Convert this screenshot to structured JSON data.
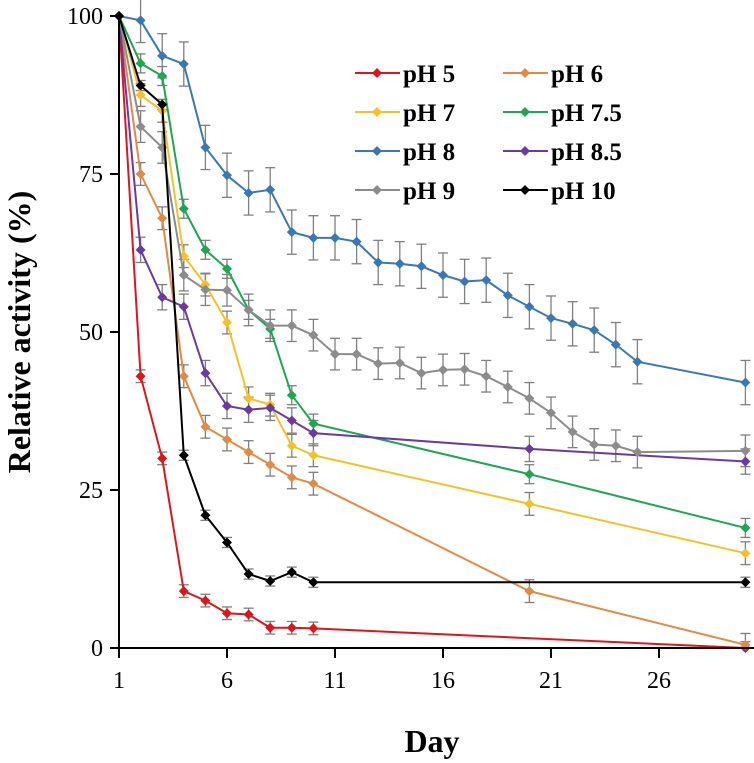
{
  "chart_data": {
    "type": "line",
    "title": "",
    "xlabel": "Day",
    "ylabel": "Relative activity (%)",
    "xlim": [
      1,
      30
    ],
    "ylim": [
      0,
      100
    ],
    "xticks": [
      1,
      6,
      11,
      16,
      21,
      26
    ],
    "yticks": [
      0,
      25,
      50,
      75,
      100
    ],
    "grid": false,
    "legend_position": "top-right",
    "series": [
      {
        "name": "pH 5",
        "color": "#e0151b",
        "err": 1.0,
        "x": [
          1,
          2,
          3,
          4,
          5,
          6,
          7,
          8,
          9,
          10,
          30
        ],
        "y": [
          100,
          43,
          30,
          9,
          7.5,
          5.5,
          5.3,
          3.2,
          3.2,
          3.1,
          0
        ]
      },
      {
        "name": "pH 6",
        "color": "#e08a45",
        "err": 1.8,
        "x": [
          1,
          2,
          3,
          4,
          5,
          6,
          7,
          8,
          9,
          10,
          20,
          30
        ],
        "y": [
          100,
          75,
          68,
          43,
          35,
          33,
          31,
          29,
          27,
          26,
          9,
          0.5
        ]
      },
      {
        "name": "pH 7",
        "color": "#f5c12a",
        "err": 1.8,
        "x": [
          1,
          2,
          3,
          4,
          5,
          6,
          7,
          8,
          9,
          10,
          20,
          30
        ],
        "y": [
          100,
          87.5,
          85,
          62,
          57.5,
          51.5,
          39.5,
          38.5,
          32,
          30.5,
          22.8,
          15
        ]
      },
      {
        "name": "pH 7.5",
        "color": "#1fa653",
        "err": 1.5,
        "x": [
          1,
          2,
          3,
          4,
          5,
          6,
          7,
          8,
          9,
          10,
          20,
          30
        ],
        "y": [
          100,
          92.5,
          90.5,
          69.5,
          63,
          60,
          53.5,
          50.5,
          40,
          35.5,
          27.5,
          19
        ]
      },
      {
        "name": "pH 8",
        "color": "#3a78b5",
        "err": 3.5,
        "x": [
          1,
          2,
          3,
          4,
          5,
          6,
          7,
          8,
          9,
          10,
          11,
          12,
          13,
          14,
          15,
          16,
          17,
          18,
          19,
          20,
          21,
          22,
          23,
          24,
          25,
          30
        ],
        "y": [
          100,
          99.3,
          93.7,
          92.4,
          79.2,
          74.8,
          72,
          72.5,
          65.8,
          64.9,
          64.9,
          64.3,
          61,
          60.8,
          60.4,
          59,
          58,
          58.2,
          55.8,
          54,
          52.2,
          51.3,
          50.3,
          48,
          45.3,
          42
        ]
      },
      {
        "name": "pH 8.5",
        "color": "#6a3a9e",
        "err": 2.0,
        "x": [
          1,
          2,
          3,
          4,
          5,
          6,
          7,
          8,
          9,
          10,
          20,
          30
        ],
        "y": [
          100,
          63,
          55.5,
          54,
          43.5,
          38.3,
          37.7,
          38,
          36,
          34,
          31.5,
          29.5
        ]
      },
      {
        "name": "pH 9",
        "color": "#8c8c8c",
        "err": 2.5,
        "x": [
          1,
          2,
          3,
          4,
          5,
          6,
          7,
          8,
          9,
          10,
          11,
          12,
          13,
          14,
          15,
          16,
          17,
          18,
          19,
          20,
          21,
          22,
          23,
          24,
          25,
          30
        ],
        "y": [
          100,
          82.5,
          79.2,
          59,
          56.7,
          56.6,
          53.5,
          51,
          51,
          49.5,
          46.5,
          46.5,
          45,
          45.1,
          43.5,
          44,
          44.1,
          43,
          41.3,
          39.5,
          37.2,
          34.2,
          32.2,
          32,
          31,
          31.2
        ]
      },
      {
        "name": "pH 10",
        "color": "#000000",
        "err": 0.8,
        "x": [
          1,
          2,
          3,
          4,
          5,
          6,
          7,
          8,
          9,
          10,
          30
        ],
        "y": [
          100,
          89,
          86,
          30.5,
          21,
          16.7,
          11.7,
          10.6,
          12,
          10.4,
          10.4
        ]
      }
    ]
  }
}
